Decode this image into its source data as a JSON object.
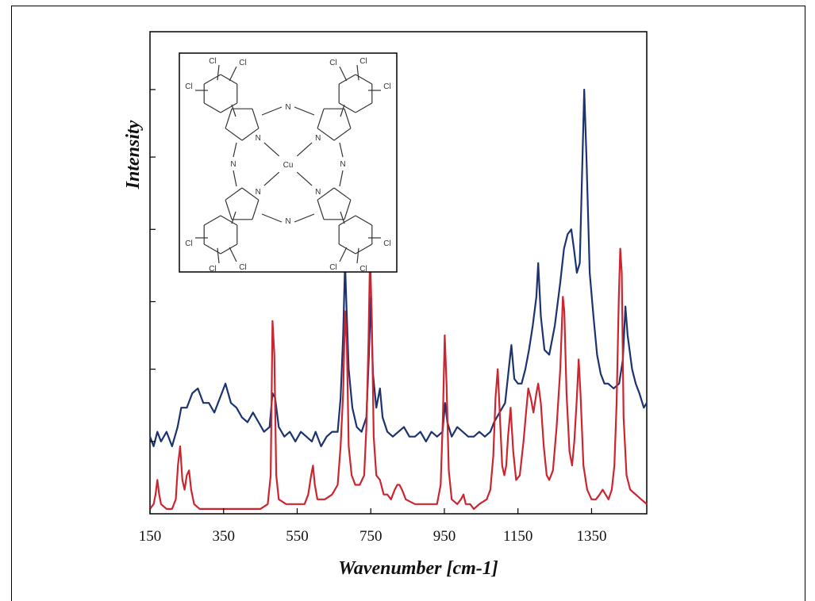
{
  "chart_data": {
    "type": "line",
    "title": "",
    "xlabel": "Wavenumber [cm-1]",
    "ylabel": "Intensity",
    "xlim": [
      150,
      1500
    ],
    "ylim": [
      0,
      100
    ],
    "x_ticks": [
      "150",
      "350",
      "550",
      "750",
      "950",
      "1150",
      "1350"
    ],
    "y_tick_values": [
      15,
      30,
      44,
      59,
      74,
      88
    ],
    "grid": false,
    "legend": "none",
    "series": [
      {
        "color": "#1c3370",
        "points": [
          [
            150,
            16
          ],
          [
            160,
            14
          ],
          [
            170,
            17
          ],
          [
            180,
            15
          ],
          [
            195,
            17
          ],
          [
            210,
            14
          ],
          [
            225,
            18
          ],
          [
            235,
            22
          ],
          [
            250,
            22
          ],
          [
            265,
            25
          ],
          [
            280,
            26
          ],
          [
            295,
            23
          ],
          [
            310,
            23
          ],
          [
            325,
            21
          ],
          [
            340,
            24
          ],
          [
            355,
            27
          ],
          [
            370,
            23
          ],
          [
            385,
            22
          ],
          [
            400,
            20
          ],
          [
            415,
            19
          ],
          [
            430,
            21
          ],
          [
            445,
            19
          ],
          [
            460,
            17
          ],
          [
            475,
            18
          ],
          [
            483,
            25
          ],
          [
            490,
            24
          ],
          [
            500,
            18
          ],
          [
            515,
            16
          ],
          [
            530,
            17
          ],
          [
            545,
            15
          ],
          [
            560,
            17
          ],
          [
            575,
            16
          ],
          [
            590,
            15
          ],
          [
            600,
            17
          ],
          [
            615,
            14
          ],
          [
            630,
            16
          ],
          [
            645,
            17
          ],
          [
            660,
            17
          ],
          [
            668,
            24
          ],
          [
            675,
            37
          ],
          [
            680,
            52
          ],
          [
            684,
            43
          ],
          [
            690,
            30
          ],
          [
            700,
            22
          ],
          [
            712,
            18
          ],
          [
            725,
            17
          ],
          [
            738,
            20
          ],
          [
            745,
            33
          ],
          [
            750,
            45
          ],
          [
            756,
            29
          ],
          [
            765,
            22
          ],
          [
            775,
            26
          ],
          [
            782,
            20
          ],
          [
            795,
            17
          ],
          [
            810,
            16
          ],
          [
            825,
            17
          ],
          [
            840,
            18
          ],
          [
            855,
            16
          ],
          [
            870,
            16
          ],
          [
            885,
            17
          ],
          [
            900,
            15
          ],
          [
            915,
            17
          ],
          [
            930,
            16
          ],
          [
            945,
            17
          ],
          [
            952,
            23
          ],
          [
            958,
            19
          ],
          [
            970,
            16
          ],
          [
            985,
            18
          ],
          [
            1000,
            17
          ],
          [
            1015,
            16
          ],
          [
            1030,
            16
          ],
          [
            1045,
            17
          ],
          [
            1060,
            16
          ],
          [
            1075,
            17
          ],
          [
            1085,
            19
          ],
          [
            1100,
            21
          ],
          [
            1115,
            23
          ],
          [
            1125,
            30
          ],
          [
            1132,
            35
          ],
          [
            1140,
            28
          ],
          [
            1150,
            27
          ],
          [
            1160,
            27
          ],
          [
            1170,
            30
          ],
          [
            1180,
            34
          ],
          [
            1190,
            39
          ],
          [
            1200,
            45
          ],
          [
            1205,
            52
          ],
          [
            1212,
            41
          ],
          [
            1222,
            34
          ],
          [
            1235,
            33
          ],
          [
            1250,
            39
          ],
          [
            1265,
            48
          ],
          [
            1275,
            55
          ],
          [
            1285,
            58
          ],
          [
            1295,
            59
          ],
          [
            1302,
            55
          ],
          [
            1310,
            50
          ],
          [
            1318,
            52
          ],
          [
            1324,
            70
          ],
          [
            1330,
            88
          ],
          [
            1336,
            74
          ],
          [
            1345,
            50
          ],
          [
            1355,
            41
          ],
          [
            1365,
            33
          ],
          [
            1375,
            29
          ],
          [
            1385,
            27
          ],
          [
            1395,
            27
          ],
          [
            1410,
            26
          ],
          [
            1425,
            27
          ],
          [
            1435,
            32
          ],
          [
            1442,
            43
          ],
          [
            1448,
            37
          ],
          [
            1460,
            30
          ],
          [
            1470,
            27
          ],
          [
            1480,
            25
          ],
          [
            1492,
            22
          ],
          [
            1500,
            23
          ]
        ]
      },
      {
        "color": "#cc2530",
        "points": [
          [
            150,
            1
          ],
          [
            160,
            2
          ],
          [
            165,
            4
          ],
          [
            170,
            7
          ],
          [
            175,
            4
          ],
          [
            180,
            2
          ],
          [
            195,
            1
          ],
          [
            210,
            1
          ],
          [
            220,
            3
          ],
          [
            226,
            10
          ],
          [
            232,
            14
          ],
          [
            238,
            7
          ],
          [
            244,
            5
          ],
          [
            250,
            8
          ],
          [
            256,
            9
          ],
          [
            262,
            5
          ],
          [
            270,
            2
          ],
          [
            285,
            1
          ],
          [
            310,
            1
          ],
          [
            340,
            1
          ],
          [
            380,
            1
          ],
          [
            420,
            1
          ],
          [
            450,
            1
          ],
          [
            470,
            2
          ],
          [
            478,
            8
          ],
          [
            483,
            40
          ],
          [
            488,
            33
          ],
          [
            493,
            8
          ],
          [
            500,
            3
          ],
          [
            520,
            2
          ],
          [
            550,
            2
          ],
          [
            570,
            2
          ],
          [
            580,
            4
          ],
          [
            588,
            8
          ],
          [
            593,
            10
          ],
          [
            598,
            6
          ],
          [
            605,
            3
          ],
          [
            625,
            3
          ],
          [
            645,
            4
          ],
          [
            660,
            6
          ],
          [
            668,
            14
          ],
          [
            675,
            25
          ],
          [
            680,
            42
          ],
          [
            685,
            35
          ],
          [
            690,
            14
          ],
          [
            698,
            8
          ],
          [
            708,
            6
          ],
          [
            720,
            6
          ],
          [
            732,
            8
          ],
          [
            738,
            18
          ],
          [
            744,
            36
          ],
          [
            748,
            54
          ],
          [
            753,
            40
          ],
          [
            758,
            16
          ],
          [
            765,
            8
          ],
          [
            775,
            7
          ],
          [
            785,
            4
          ],
          [
            795,
            4
          ],
          [
            805,
            3
          ],
          [
            815,
            5
          ],
          [
            822,
            6
          ],
          [
            828,
            6
          ],
          [
            835,
            5
          ],
          [
            845,
            3
          ],
          [
            870,
            2
          ],
          [
            900,
            2
          ],
          [
            930,
            2
          ],
          [
            940,
            6
          ],
          [
            946,
            20
          ],
          [
            951,
            37
          ],
          [
            956,
            27
          ],
          [
            962,
            9
          ],
          [
            970,
            3
          ],
          [
            985,
            2
          ],
          [
            995,
            3
          ],
          [
            1002,
            4
          ],
          [
            1008,
            2
          ],
          [
            1020,
            2
          ],
          [
            1030,
            1
          ],
          [
            1045,
            2
          ],
          [
            1065,
            3
          ],
          [
            1075,
            5
          ],
          [
            1083,
            12
          ],
          [
            1089,
            24
          ],
          [
            1095,
            30
          ],
          [
            1101,
            20
          ],
          [
            1107,
            10
          ],
          [
            1113,
            8
          ],
          [
            1118,
            10
          ],
          [
            1123,
            16
          ],
          [
            1130,
            22
          ],
          [
            1137,
            13
          ],
          [
            1145,
            7
          ],
          [
            1155,
            8
          ],
          [
            1165,
            15
          ],
          [
            1172,
            21
          ],
          [
            1178,
            26
          ],
          [
            1185,
            24
          ],
          [
            1192,
            21
          ],
          [
            1200,
            25
          ],
          [
            1205,
            27
          ],
          [
            1212,
            23
          ],
          [
            1220,
            14
          ],
          [
            1228,
            8
          ],
          [
            1235,
            7
          ],
          [
            1245,
            9
          ],
          [
            1255,
            18
          ],
          [
            1265,
            30
          ],
          [
            1272,
            45
          ],
          [
            1276,
            42
          ],
          [
            1282,
            25
          ],
          [
            1290,
            13
          ],
          [
            1297,
            10
          ],
          [
            1303,
            15
          ],
          [
            1310,
            24
          ],
          [
            1315,
            32
          ],
          [
            1320,
            25
          ],
          [
            1328,
            10
          ],
          [
            1338,
            5
          ],
          [
            1350,
            3
          ],
          [
            1362,
            3
          ],
          [
            1372,
            4
          ],
          [
            1380,
            5
          ],
          [
            1388,
            4
          ],
          [
            1396,
            3
          ],
          [
            1405,
            5
          ],
          [
            1412,
            10
          ],
          [
            1418,
            23
          ],
          [
            1424,
            45
          ],
          [
            1428,
            55
          ],
          [
            1432,
            50
          ],
          [
            1437,
            20
          ],
          [
            1445,
            8
          ],
          [
            1455,
            5
          ],
          [
            1470,
            4
          ],
          [
            1485,
            3
          ],
          [
            1500,
            2
          ]
        ]
      }
    ]
  },
  "inset": {
    "center_atom": "Cu",
    "nitrogen": "N",
    "chlorine": "Cl"
  }
}
